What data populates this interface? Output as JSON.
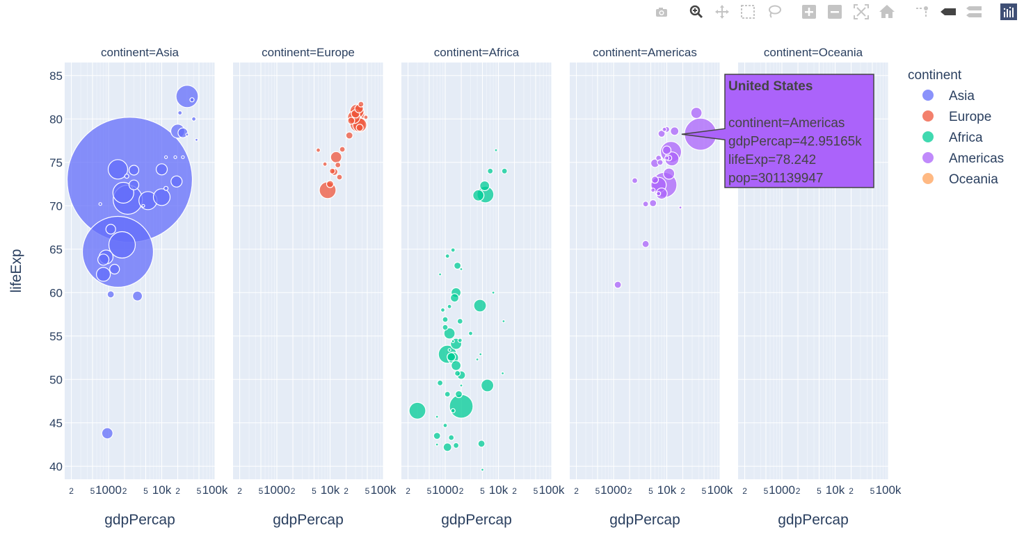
{
  "modebar": {
    "buttons": [
      {
        "name": "camera-icon",
        "title": "Download plot as a png"
      },
      {
        "name": "zoom-icon",
        "title": "Zoom"
      },
      {
        "name": "pan-icon",
        "title": "Pan"
      },
      {
        "name": "box-select-icon",
        "title": "Box Select"
      },
      {
        "name": "lasso-select-icon",
        "title": "Lasso Select"
      },
      {
        "name": "zoom-in-icon",
        "title": "Zoom in"
      },
      {
        "name": "zoom-out-icon",
        "title": "Zoom out"
      },
      {
        "name": "autoscale-icon",
        "title": "Autoscale"
      },
      {
        "name": "reset-axes-icon",
        "title": "Reset axes"
      },
      {
        "name": "spike-lines-icon",
        "title": "Toggle Spike Lines"
      },
      {
        "name": "hover-closest-icon",
        "title": "Show closest data on hover"
      },
      {
        "name": "hover-compare-icon",
        "title": "Compare data on hover"
      },
      {
        "name": "plotly-logo-icon",
        "title": "Produced with Plotly"
      }
    ]
  },
  "chart_data": {
    "type": "scatter",
    "x_scale": "log",
    "xlim": [
      150,
      100000
    ],
    "ylim": [
      38.5,
      86.5
    ],
    "xlabel": "gdpPercap",
    "ylabel": "lifeExp",
    "yticks": [
      40,
      45,
      50,
      55,
      60,
      65,
      70,
      75,
      80,
      85
    ],
    "xticks": [
      {
        "value": 200,
        "label": "2"
      },
      {
        "value": 500,
        "label": "5"
      },
      {
        "value": 1000,
        "label": "1000"
      },
      {
        "value": 2000,
        "label": "2"
      },
      {
        "value": 5000,
        "label": "5"
      },
      {
        "value": 10000,
        "label": "10k"
      },
      {
        "value": 20000,
        "label": "2"
      },
      {
        "value": 50000,
        "label": "5"
      },
      {
        "value": 100000,
        "label": "100k"
      }
    ],
    "legend_title": "continent",
    "legend_position": "right",
    "grid": true,
    "facets": [
      {
        "title": "continent=Asia",
        "name": "Asia",
        "color": "#636efa",
        "points": [
          [
            2500,
            73.0,
            90
          ],
          [
            1500,
            64.7,
            51
          ],
          [
            30000,
            82.6,
            16
          ],
          [
            1500,
            74.2,
            14
          ],
          [
            1800,
            65.5,
            19
          ],
          [
            1900,
            71.5,
            15
          ],
          [
            2300,
            70.7,
            21
          ],
          [
            5500,
            70.6,
            13
          ],
          [
            10000,
            71.0,
            12
          ],
          [
            20000,
            78.6,
            10
          ],
          [
            25000,
            78.4,
            7
          ],
          [
            19000,
            72.8,
            8
          ],
          [
            900,
            64.1,
            10
          ],
          [
            1100,
            67.3,
            7
          ],
          [
            800,
            62.1,
            10
          ],
          [
            1300,
            62.7,
            7
          ],
          [
            800,
            63.8,
            8
          ],
          [
            10000,
            74.2,
            8
          ],
          [
            3000,
            74.1,
            7
          ],
          [
            3000,
            72.4,
            7
          ],
          [
            1100,
            59.8,
            5
          ],
          [
            3500,
            59.6,
            7
          ],
          [
            950,
            43.8,
            8
          ],
          [
            22000,
            80.7,
            3
          ],
          [
            40000,
            80.0,
            3
          ],
          [
            37000,
            82.2,
            3
          ],
          [
            45000,
            77.6,
            2
          ],
          [
            18000,
            75.6,
            2
          ],
          [
            25000,
            75.6,
            2
          ],
          [
            2200,
            73.4,
            3
          ],
          [
            12000,
            75.6,
            2
          ],
          [
            30000,
            78.2,
            2
          ],
          [
            12000,
            72.0,
            3
          ],
          [
            4500,
            70.0,
            2
          ],
          [
            700,
            70.2,
            2
          ]
        ]
      },
      {
        "title": "continent=Europe",
        "name": "Europe",
        "color": "#ef553b",
        "points": [
          [
            9000,
            71.8,
            12
          ],
          [
            32000,
            80.5,
            11
          ],
          [
            33000,
            79.4,
            11
          ],
          [
            36000,
            79.3,
            10
          ],
          [
            32000,
            80.9,
            10
          ],
          [
            28000,
            80.2,
            9
          ],
          [
            13000,
            75.6,
            8
          ],
          [
            30000,
            80.6,
            6
          ],
          [
            35000,
            81.2,
            6
          ],
          [
            25000,
            79.8,
            5
          ],
          [
            38000,
            81.7,
            4
          ],
          [
            23000,
            78.1,
            5
          ],
          [
            17000,
            76.5,
            4
          ],
          [
            10000,
            72.5,
            5
          ],
          [
            12000,
            73.9,
            5
          ],
          [
            15000,
            73.3,
            4
          ],
          [
            11000,
            74.0,
            4
          ],
          [
            8000,
            74.8,
            3
          ],
          [
            14000,
            74.7,
            4
          ],
          [
            6000,
            76.4,
            3
          ],
          [
            47000,
            80.2,
            3
          ],
          [
            36000,
            79.0,
            5
          ]
        ]
      },
      {
        "title": "continent=Africa",
        "name": "Africa",
        "color": "#00cc96",
        "points": [
          [
            2000,
            46.9,
            17
          ],
          [
            5700,
            71.3,
            12
          ],
          [
            1100,
            52.9,
            13
          ],
          [
            300,
            46.4,
            12
          ],
          [
            4500,
            58.5,
            9
          ],
          [
            6200,
            49.3,
            9
          ],
          [
            1200,
            55.3,
            8
          ],
          [
            1600,
            54.1,
            8
          ],
          [
            1600,
            51.6,
            7
          ],
          [
            4200,
            71.2,
            8
          ],
          [
            1400,
            52.5,
            8
          ],
          [
            1600,
            60.0,
            7
          ],
          [
            5500,
            72.3,
            7
          ],
          [
            1500,
            59.4,
            6
          ],
          [
            1300,
            52.6,
            6
          ],
          [
            2000,
            50.5,
            6
          ],
          [
            1100,
            42.2,
            6
          ],
          [
            1600,
            42.4,
            4
          ],
          [
            800,
            49.6,
            4
          ],
          [
            1000,
            56.9,
            4
          ],
          [
            1300,
            43.3,
            4
          ],
          [
            1100,
            48.3,
            4
          ],
          [
            1800,
            48.3,
            5
          ],
          [
            700,
            43.5,
            5
          ],
          [
            1900,
            56.7,
            4
          ],
          [
            1100,
            64.2,
            3
          ],
          [
            1000,
            56.0,
            4
          ],
          [
            4800,
            42.6,
            5
          ],
          [
            7000,
            74.0,
            4
          ],
          [
            13000,
            74.0,
            4
          ],
          [
            1400,
            64.9,
            3
          ],
          [
            1700,
            63.1,
            5
          ],
          [
            900,
            58.0,
            3
          ],
          [
            1700,
            50.7,
            4
          ],
          [
            1400,
            46.4,
            3
          ],
          [
            3000,
            55.3,
            3
          ],
          [
            1200,
            53.4,
            2
          ],
          [
            4600,
            52.9,
            2
          ],
          [
            1900,
            54.5,
            3
          ],
          [
            800,
            62.1,
            2
          ],
          [
            1200,
            58.4,
            3
          ],
          [
            700,
            45.7,
            2
          ],
          [
            1000,
            44.7,
            3
          ],
          [
            12500,
            56.7,
            2
          ],
          [
            12000,
            50.7,
            2
          ],
          [
            700,
            42.5,
            2
          ],
          [
            2000,
            49.3,
            2
          ],
          [
            5000,
            39.6,
            2
          ],
          [
            9000,
            76.4,
            2
          ],
          [
            4000,
            52.3,
            2
          ],
          [
            1400,
            54.4,
            2
          ],
          [
            2000,
            62.7,
            2
          ],
          [
            8000,
            60.0,
            2
          ]
        ]
      },
      {
        "title": "continent=Americas",
        "name": "Americas",
        "color": "#ab63fa",
        "points": [
          [
            42951,
            78.242,
            23
          ],
          [
            9000,
            72.4,
            18
          ],
          [
            12000,
            76.2,
            15
          ],
          [
            7000,
            72.4,
            11
          ],
          [
            12500,
            75.4,
            10
          ],
          [
            36000,
            80.7,
            8
          ],
          [
            11000,
            73.7,
            8
          ],
          [
            8000,
            71.4,
            8
          ],
          [
            10000,
            76.4,
            6
          ],
          [
            6000,
            74.9,
            6
          ],
          [
            14000,
            78.6,
            6
          ],
          [
            4000,
            65.6,
            5
          ],
          [
            5500,
            70.3,
            5
          ],
          [
            4000,
            70.2,
            4
          ],
          [
            8000,
            78.3,
            5
          ],
          [
            7000,
            75.5,
            4
          ],
          [
            6000,
            73.0,
            5
          ],
          [
            10000,
            78.8,
            4
          ],
          [
            11000,
            75.5,
            4
          ],
          [
            2500,
            72.9,
            4
          ],
          [
            7500,
            75.0,
            4
          ],
          [
            1200,
            60.9,
            5
          ],
          [
            5500,
            71.8,
            3
          ],
          [
            18000,
            69.8,
            2
          ],
          [
            7000,
            71.4,
            3
          ],
          [
            10000,
            75.5,
            3
          ],
          [
            9000,
            78.8,
            3
          ]
        ]
      },
      {
        "title": "continent=Oceania",
        "name": "Oceania",
        "color": "#ffa15a",
        "points": []
      }
    ],
    "hover": {
      "facet": 3,
      "title": "United States",
      "lines": [
        "",
        "continent=Americas",
        "gdpPercap=42.95165k",
        "lifeExp=78.242",
        "pop=301139947"
      ]
    }
  }
}
